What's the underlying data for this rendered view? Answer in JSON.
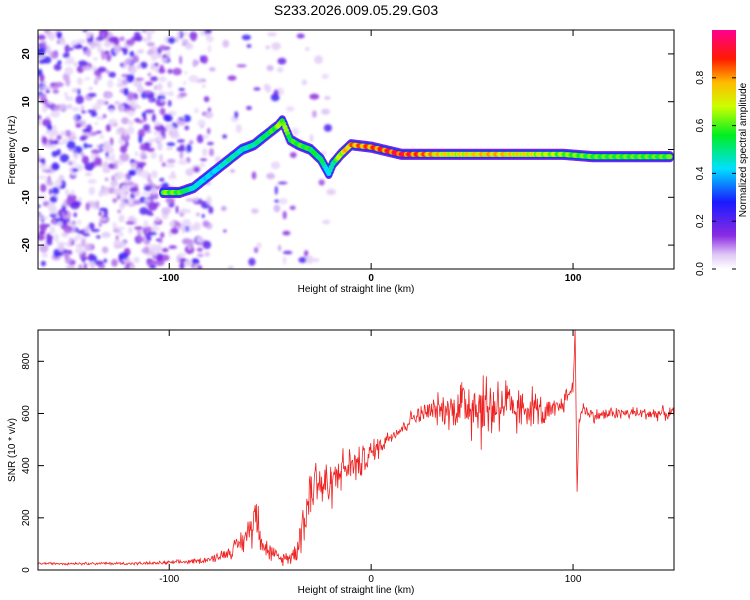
{
  "title": "S233.2026.009.05.29.G03",
  "chart_data": [
    {
      "type": "heatmap",
      "title": "S233.2026.009.05.29.G03",
      "xlabel": "Height of straight line (km)",
      "ylabel": "Frequency (Hz)",
      "xlim": [
        -165,
        150
      ],
      "ylim": [
        -25,
        25
      ],
      "xticks": [
        -100,
        0,
        100
      ],
      "yticks": [
        -20,
        -10,
        0,
        10,
        20
      ],
      "colorbar": {
        "label": "Normalized spectral amplitude",
        "range": [
          0,
          1
        ],
        "ticks": [
          "0.0",
          "0.2",
          "0.4",
          "0.6",
          "0.8"
        ],
        "colormap": "rainbow (purple-blue-cyan-green-yellow-red-magenta)"
      },
      "ridge": {
        "x": [
          -103,
          -95,
          -88,
          -82,
          -76,
          -70,
          -64,
          -58,
          -52,
          -46,
          -44,
          -40,
          -36,
          -30,
          -25,
          -21,
          -19,
          -15,
          -10,
          0,
          15,
          40,
          60,
          80,
          95,
          110,
          130,
          148
        ],
        "freq": [
          -9,
          -9,
          -8,
          -6,
          -4,
          -2,
          0,
          1,
          3,
          5,
          6,
          2,
          1,
          0,
          -2,
          -5,
          -3,
          -1,
          1,
          0.5,
          -1,
          -1,
          -1,
          -1,
          -1,
          -1.5,
          -1.5,
          -1.5
        ],
        "amplitude": [
          0.5,
          0.45,
          0.25,
          0.2,
          0.2,
          0.3,
          0.25,
          0.3,
          0.35,
          0.5,
          0.55,
          0.4,
          0.45,
          0.4,
          0.35,
          0.2,
          0.3,
          0.6,
          0.75,
          0.8,
          0.9,
          0.6,
          0.7,
          0.6,
          0.5,
          0.45,
          0.45,
          0.45
        ]
      }
    },
    {
      "type": "line",
      "xlabel": "Height of straight line (km)",
      "ylabel": "SNR (10 * v/v)",
      "xlim": [
        -165,
        150
      ],
      "ylim": [
        0,
        920
      ],
      "xticks": [
        -100,
        0,
        100
      ],
      "yticks": [
        0,
        200,
        400,
        600,
        800
      ],
      "series": [
        {
          "name": "SNR",
          "color": "#ee2222",
          "x": [
            -165,
            -140,
            -110,
            -95,
            -85,
            -78,
            -70,
            -65,
            -60,
            -57,
            -55,
            -52,
            -45,
            -38,
            -33,
            -30,
            -27,
            -24,
            -20,
            -15,
            -10,
            -5,
            0,
            5,
            10,
            15,
            20,
            25,
            30,
            35,
            40,
            45,
            50,
            55,
            60,
            65,
            70,
            75,
            80,
            85,
            90,
            95,
            100,
            101,
            102,
            103,
            105,
            110,
            120,
            130,
            140,
            150
          ],
          "y": [
            25,
            25,
            25,
            30,
            35,
            45,
            70,
            100,
            150,
            230,
            150,
            80,
            40,
            60,
            200,
            300,
            350,
            320,
            330,
            380,
            400,
            410,
            450,
            480,
            520,
            540,
            580,
            600,
            610,
            620,
            620,
            640,
            640,
            620,
            630,
            650,
            600,
            620,
            630,
            600,
            600,
            640,
            700,
            920,
            300,
            580,
            620,
            590,
            600,
            600,
            600,
            600
          ],
          "spike_amplitude": [
            4,
            5,
            6,
            8,
            10,
            15,
            25,
            40,
            70,
            90,
            80,
            40,
            20,
            40,
            100,
            150,
            120,
            100,
            90,
            80,
            70,
            60,
            50,
            40,
            30,
            30,
            30,
            40,
            50,
            60,
            80,
            120,
            160,
            150,
            140,
            120,
            100,
            80,
            70,
            60,
            50,
            40,
            40,
            0,
            0,
            30,
            30,
            25,
            25,
            25,
            25,
            25
          ]
        }
      ]
    }
  ]
}
